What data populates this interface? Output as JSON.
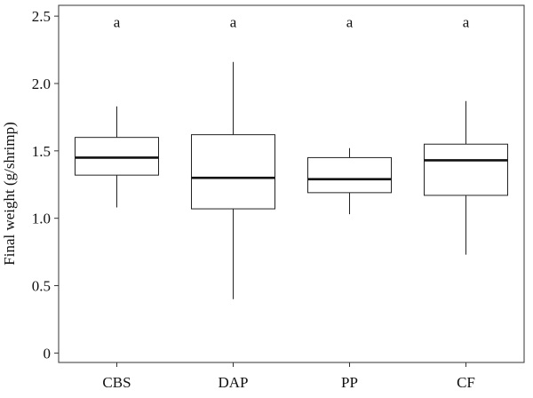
{
  "chart_data": {
    "type": "box",
    "title": "",
    "xlabel": "",
    "ylabel": "Final weight (g/shrimp)",
    "ylim": [
      -0.07,
      2.58
    ],
    "yticks": [
      0,
      0.5,
      1.0,
      1.5,
      2.0,
      2.5
    ],
    "ytick_labels": [
      "0",
      "0.5",
      "1.0",
      "1.5",
      "2.0",
      "2.5"
    ],
    "categories": [
      "CBS",
      "DAP",
      "PP",
      "CF"
    ],
    "significance_labels": [
      "a",
      "a",
      "a",
      "a"
    ],
    "grid": false,
    "legend": "none",
    "boxes": [
      {
        "category": "CBS",
        "min": 1.08,
        "q1": 1.32,
        "median": 1.45,
        "q3": 1.6,
        "max": 1.83
      },
      {
        "category": "DAP",
        "min": 0.4,
        "q1": 1.07,
        "median": 1.3,
        "q3": 1.62,
        "max": 2.16
      },
      {
        "category": "PP",
        "min": 1.03,
        "q1": 1.19,
        "median": 1.29,
        "q3": 1.45,
        "max": 1.52
      },
      {
        "category": "CF",
        "min": 0.73,
        "q1": 1.17,
        "median": 1.43,
        "q3": 1.55,
        "max": 1.87
      }
    ]
  }
}
